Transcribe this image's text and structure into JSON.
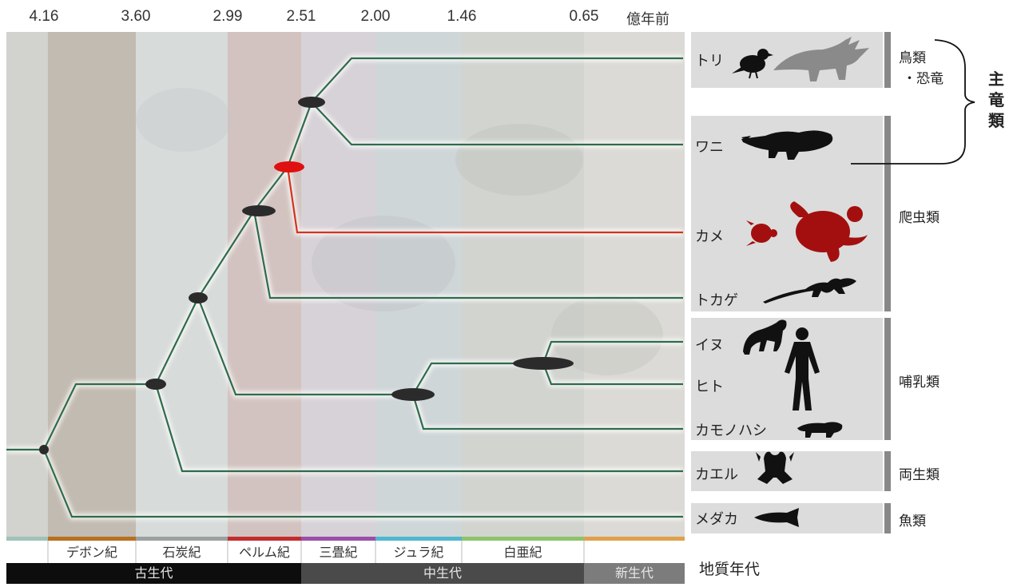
{
  "axis": {
    "ticks": [
      "4.16",
      "3.60",
      "2.99",
      "2.51",
      "2.00",
      "1.46",
      "0.65"
    ],
    "unit": "億年前"
  },
  "taxa": {
    "bird": "トリ",
    "croc": "ワニ",
    "turtle": "カメ",
    "lizard": "トカゲ",
    "dog": "イヌ",
    "human": "ヒト",
    "platypus": "カモノハシ",
    "frog": "カエル",
    "medaka": "メダカ"
  },
  "groups": {
    "birds_dinos_1": "鳥類",
    "birds_dinos_2": "・恐竜",
    "reptiles": "爬虫類",
    "mammals": "哺乳類",
    "amphibians": "両生類",
    "fish": "魚類",
    "archosaurs": "主竜類"
  },
  "periods": [
    "デボン紀",
    "石炭紀",
    "ペルム紀",
    "三畳紀",
    "ジュラ紀",
    "白亜紀"
  ],
  "eras": [
    "古生代",
    "中生代",
    "新生代"
  ],
  "footer_label": "地質年代",
  "colors": {
    "branch": "#2e6b4a",
    "turtle_branch": "#d2331f",
    "turtle_silhouette": "#a30f0f",
    "node": "#2b2b2b",
    "node_highlight": "#e01010",
    "dino_silhouette": "#8a8a8a",
    "panel": "#dcdcdc"
  }
}
